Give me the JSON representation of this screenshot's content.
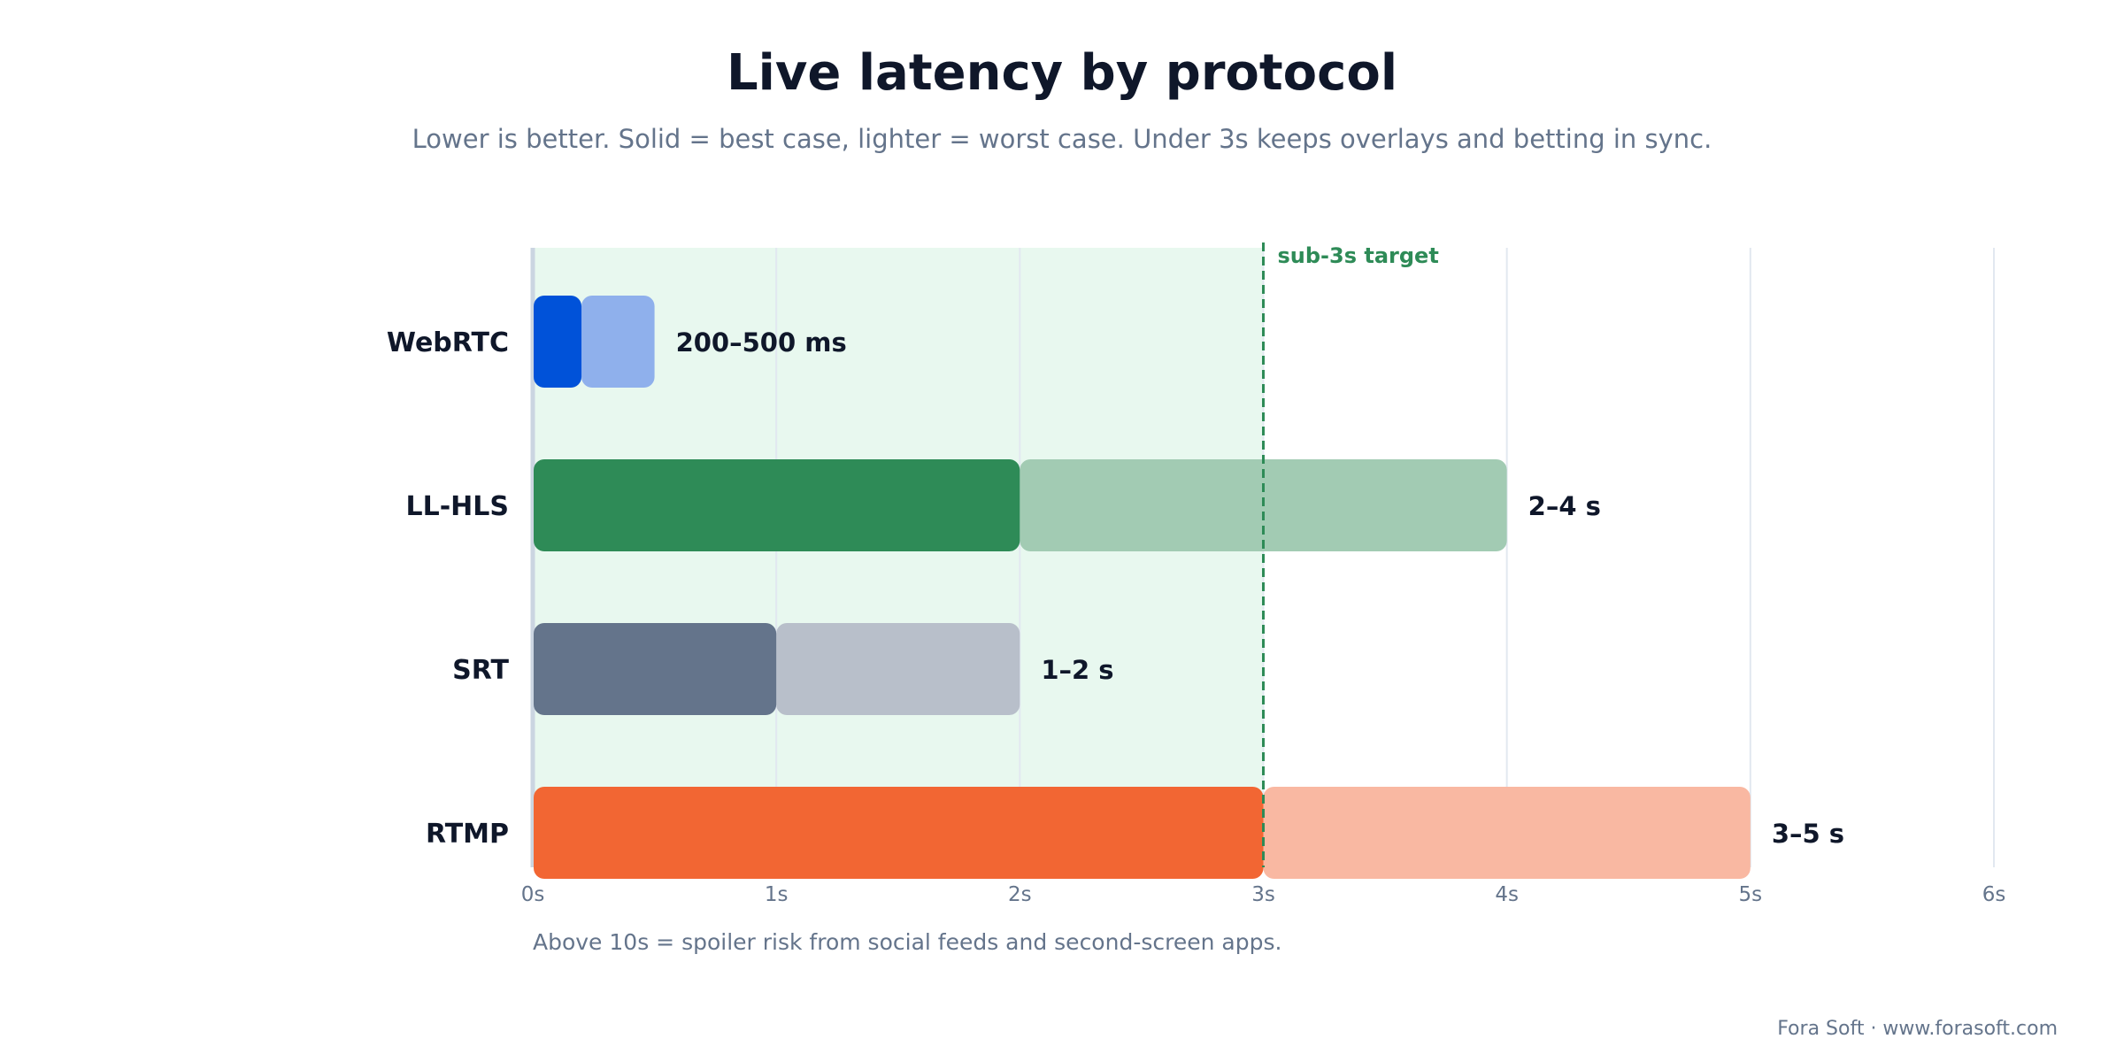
{
  "chart_data": {
    "type": "bar",
    "orientation": "horizontal",
    "title": "Live latency by protocol",
    "subtitle": "Lower is better. Solid = best case, lighter = worst case. Under 3s keeps overlays and betting in sync.",
    "categories": [
      "WebRTC",
      "LL-HLS",
      "SRT",
      "RTMP"
    ],
    "series": [
      {
        "values": [
          0.2,
          2,
          1,
          3
        ]
      },
      {
        "values": [
          0.5,
          4,
          2,
          5
        ]
      }
    ],
    "value_labels": [
      "200–500 ms",
      "2–4 s",
      "1–2 s",
      "3–5 s"
    ],
    "colors": {
      "best": [
        "#0052d9",
        "#2e8b57",
        "#64748b",
        "#f26633"
      ],
      "worst": [
        "#8fb0ec",
        "#a2cbb3",
        "#b8bfca",
        "#f9b8a2"
      ],
      "target_band": "#e8f8ef",
      "target_line": "#2e8b57",
      "grid": "#e2e8f0",
      "axis": "#cbd5e1",
      "label": "#0f172a",
      "tick": "#64748b"
    },
    "xlim": [
      0,
      6
    ],
    "xticks": [
      0,
      1,
      2,
      3,
      4,
      5,
      6
    ],
    "xtick_labels": [
      "0s",
      "1s",
      "2s",
      "3s",
      "4s",
      "5s",
      "6s"
    ],
    "grid": true,
    "target": {
      "value": 3,
      "label": "sub-3s target"
    }
  },
  "footnote": "Above 10s = spoiler risk from social feeds and second-screen apps.",
  "credit": "Fora Soft · www.forasoft.com"
}
